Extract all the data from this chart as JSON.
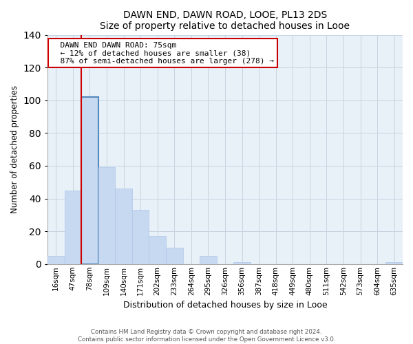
{
  "title": "DAWN END, DAWN ROAD, LOOE, PL13 2DS",
  "subtitle": "Size of property relative to detached houses in Looe",
  "xlabel": "Distribution of detached houses by size in Looe",
  "ylabel": "Number of detached properties",
  "bar_labels": [
    "16sqm",
    "47sqm",
    "78sqm",
    "109sqm",
    "140sqm",
    "171sqm",
    "202sqm",
    "233sqm",
    "264sqm",
    "295sqm",
    "326sqm",
    "356sqm",
    "387sqm",
    "418sqm",
    "449sqm",
    "480sqm",
    "511sqm",
    "542sqm",
    "573sqm",
    "604sqm",
    "635sqm"
  ],
  "bar_values": [
    5,
    45,
    102,
    59,
    46,
    33,
    17,
    10,
    0,
    5,
    0,
    1,
    0,
    0,
    0,
    0,
    0,
    0,
    0,
    0,
    1
  ],
  "bar_color": "#c6d9f0",
  "bar_edge_color": "#aec6e8",
  "highlight_bar_index": 2,
  "highlight_bar_edge_color": "#5588bb",
  "highlight_color": "#cc0000",
  "annotation_title": "DAWN END DAWN ROAD: 75sqm",
  "annotation_line1": "← 12% of detached houses are smaller (38)",
  "annotation_line2": "87% of semi-detached houses are larger (278) →",
  "ylim": [
    0,
    140
  ],
  "yticks": [
    0,
    20,
    40,
    60,
    80,
    100,
    120,
    140
  ],
  "footer_line1": "Contains HM Land Registry data © Crown copyright and database right 2024.",
  "footer_line2": "Contains public sector information licensed under the Open Government Licence v3.0."
}
